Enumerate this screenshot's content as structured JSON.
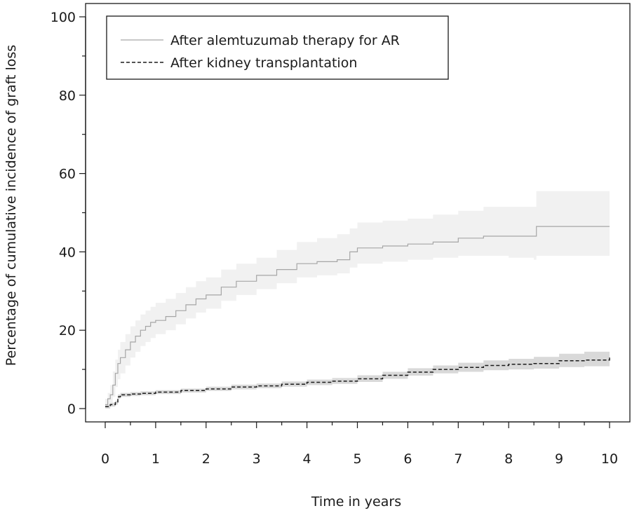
{
  "chart_data": {
    "type": "line",
    "xlabel": "Time in years",
    "ylabel": "Percentage of cumulative incidence of graft loss",
    "xlim": [
      0,
      10
    ],
    "ylim": [
      0,
      100
    ],
    "xticks": [
      "0",
      "1",
      "2",
      "3",
      "4",
      "5",
      "6",
      "7",
      "8",
      "9",
      "10"
    ],
    "yticks": [
      "0",
      "20",
      "40",
      "60",
      "80",
      "100"
    ],
    "legend_position": "top-left",
    "grid": false,
    "series": [
      {
        "name": "After alemtuzumab therapy for AR",
        "style": "solid",
        "color": "#a6a6a6",
        "band_color": "#f1f1f1",
        "x": [
          0,
          0.05,
          0.1,
          0.15,
          0.2,
          0.25,
          0.3,
          0.4,
          0.5,
          0.6,
          0.7,
          0.8,
          0.9,
          1.0,
          1.2,
          1.4,
          1.6,
          1.8,
          2.0,
          2.3,
          2.6,
          3.0,
          3.4,
          3.8,
          4.2,
          4.6,
          4.85,
          5.0,
          5.5,
          6.0,
          6.5,
          7.0,
          7.5,
          8.0,
          8.5,
          8.55,
          9.0,
          9.5,
          10.0
        ],
        "values": [
          1.0,
          2.5,
          3.5,
          6.0,
          9.0,
          11.5,
          13.0,
          15.0,
          17.0,
          18.5,
          20.0,
          21.0,
          22.0,
          22.5,
          23.5,
          25.0,
          26.5,
          28.0,
          29.0,
          31.0,
          32.5,
          34.0,
          35.5,
          37.0,
          37.5,
          38.0,
          40.0,
          41.0,
          41.5,
          42.0,
          42.5,
          43.5,
          44.0,
          44.0,
          44.0,
          46.5,
          46.5,
          46.5,
          46.5
        ],
        "lower": [
          0.5,
          1.0,
          1.5,
          3.0,
          5.5,
          7.5,
          9.0,
          11.0,
          13.0,
          14.5,
          16.0,
          17.0,
          18.0,
          19.0,
          20.0,
          21.5,
          23.0,
          24.5,
          25.5,
          27.5,
          29.0,
          30.5,
          32.0,
          33.5,
          34.0,
          34.5,
          36.0,
          37.0,
          37.5,
          38.0,
          38.5,
          39.0,
          39.0,
          38.5,
          38.0,
          39.0,
          39.0,
          39.0,
          39.0
        ],
        "upper": [
          2.5,
          4.0,
          6.0,
          9.5,
          12.5,
          15.0,
          17.0,
          19.0,
          21.0,
          22.5,
          24.0,
          25.0,
          26.0,
          27.0,
          28.0,
          29.5,
          31.0,
          32.5,
          33.5,
          35.5,
          37.0,
          38.5,
          40.5,
          42.5,
          43.5,
          44.5,
          46.0,
          47.5,
          48.0,
          48.5,
          49.5,
          50.5,
          51.5,
          51.5,
          51.5,
          55.5,
          55.5,
          55.5,
          55.5
        ]
      },
      {
        "name": "After kidney transplantation",
        "style": "dashed",
        "color": "#1a1a1a",
        "band_color": "#d9d9d9",
        "x": [
          0,
          0.1,
          0.2,
          0.25,
          0.3,
          0.5,
          0.7,
          1.0,
          1.5,
          2.0,
          2.5,
          3.0,
          3.5,
          4.0,
          4.5,
          5.0,
          5.5,
          6.0,
          6.5,
          7.0,
          7.5,
          8.0,
          8.5,
          9.0,
          9.5,
          10.0
        ],
        "values": [
          0.5,
          1.0,
          1.5,
          3.0,
          3.5,
          3.7,
          3.9,
          4.2,
          4.6,
          5.0,
          5.5,
          5.8,
          6.2,
          6.7,
          7.0,
          7.6,
          8.5,
          9.3,
          10.0,
          10.5,
          11.0,
          11.3,
          11.5,
          12.2,
          12.4,
          13.0
        ],
        "lower": [
          0.0,
          0.5,
          1.0,
          2.5,
          3.0,
          3.2,
          3.4,
          3.7,
          4.1,
          4.5,
          4.9,
          5.2,
          5.6,
          6.0,
          6.3,
          6.8,
          7.6,
          8.4,
          9.0,
          9.4,
          9.8,
          10.0,
          10.2,
          10.6,
          10.8,
          11.2
        ],
        "upper": [
          1.0,
          1.5,
          2.0,
          3.6,
          4.0,
          4.2,
          4.4,
          4.7,
          5.1,
          5.6,
          6.1,
          6.4,
          6.9,
          7.4,
          7.8,
          8.5,
          9.4,
          10.3,
          11.0,
          11.7,
          12.3,
          12.7,
          13.2,
          14.0,
          14.5,
          15.0
        ]
      }
    ]
  }
}
